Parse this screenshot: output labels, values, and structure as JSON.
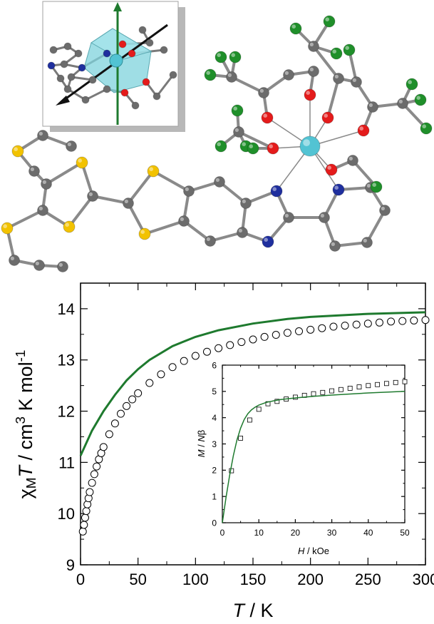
{
  "colors": {
    "fit_line": "#1e7a2e",
    "metal_atom": "#52c3d3",
    "sulfur_atom": "#f2c200",
    "nitrogen_atom": "#1f2f9e",
    "oxygen_atom": "#e41b1b",
    "fluorine_atom": "#1f8f2a",
    "carbon_atom": "#6c6c6c",
    "bond": "#8a8a8a"
  },
  "structure_molecule": {
    "description_icons": [
      "molecule-structure-icon",
      "coordination-polyhedron-inset-icon"
    ]
  },
  "chart_data": [
    {
      "type": "scatter",
      "title": "",
      "xlabel": "T / K",
      "ylabel": "χMT / cm3 K mol-1",
      "xlim": [
        0,
        300
      ],
      "ylim": [
        9,
        14.5
      ],
      "x_ticks": [
        "0",
        "50",
        "100",
        "150",
        "200",
        "250",
        "300"
      ],
      "y_ticks": [
        "9",
        "10",
        "11",
        "12",
        "13",
        "14"
      ],
      "series": [
        {
          "marker": "open-circle",
          "x": [
            2,
            3,
            4,
            5,
            6,
            7,
            8,
            10,
            12,
            14,
            16,
            18,
            20,
            25,
            30,
            35,
            40,
            45,
            50,
            60,
            70,
            80,
            90,
            100,
            110,
            120,
            130,
            140,
            150,
            160,
            170,
            180,
            190,
            200,
            210,
            220,
            230,
            240,
            250,
            260,
            270,
            280,
            290,
            300
          ],
          "values": [
            9.65,
            9.78,
            9.92,
            10.05,
            10.18,
            10.3,
            10.42,
            10.6,
            10.77,
            10.92,
            11.06,
            11.18,
            11.3,
            11.55,
            11.76,
            11.95,
            12.1,
            12.23,
            12.35,
            12.55,
            12.72,
            12.86,
            12.98,
            13.08,
            13.16,
            13.23,
            13.29,
            13.35,
            13.4,
            13.45,
            13.49,
            13.53,
            13.56,
            13.59,
            13.62,
            13.65,
            13.67,
            13.69,
            13.71,
            13.73,
            13.75,
            13.76,
            13.77,
            13.78
          ]
        },
        {
          "marker": "line",
          "x": [
            0,
            10,
            20,
            30,
            40,
            50,
            60,
            80,
            100,
            120,
            150,
            180,
            200,
            250,
            300
          ],
          "values": [
            11.13,
            11.62,
            12.0,
            12.32,
            12.6,
            12.82,
            13.0,
            13.27,
            13.45,
            13.58,
            13.71,
            13.8,
            13.84,
            13.9,
            13.93
          ]
        }
      ]
    },
    {
      "type": "scatter",
      "title": "",
      "xlabel": "H / kOe",
      "ylabel": "M / Nβ",
      "xlim": [
        0,
        50
      ],
      "ylim": [
        0,
        6
      ],
      "x_ticks": [
        "0",
        "10",
        "20",
        "30",
        "40",
        "50"
      ],
      "y_ticks": [
        "0",
        "1",
        "2",
        "3",
        "4",
        "5",
        "6"
      ],
      "series": [
        {
          "marker": "open-square",
          "x": [
            2.5,
            5,
            7.5,
            10,
            12.5,
            15,
            17.5,
            20,
            22.5,
            25,
            27.5,
            30,
            32.5,
            35,
            37.5,
            40,
            42.5,
            45,
            47.5,
            50
          ],
          "values": [
            1.98,
            3.22,
            3.91,
            4.32,
            4.53,
            4.62,
            4.71,
            4.78,
            4.85,
            4.91,
            4.96,
            5.02,
            5.07,
            5.12,
            5.17,
            5.22,
            5.26,
            5.3,
            5.34,
            5.37
          ]
        },
        {
          "marker": "line",
          "x": [
            0,
            1,
            2,
            3,
            4,
            5,
            6,
            7,
            8,
            9,
            10,
            12,
            14,
            16,
            20,
            25,
            30,
            35,
            40,
            45,
            50
          ],
          "values": [
            0,
            0.95,
            1.8,
            2.55,
            3.15,
            3.6,
            3.93,
            4.15,
            4.3,
            4.4,
            4.48,
            4.58,
            4.64,
            4.69,
            4.75,
            4.81,
            4.86,
            4.9,
            4.94,
            4.97,
            5.0
          ]
        }
      ]
    }
  ]
}
